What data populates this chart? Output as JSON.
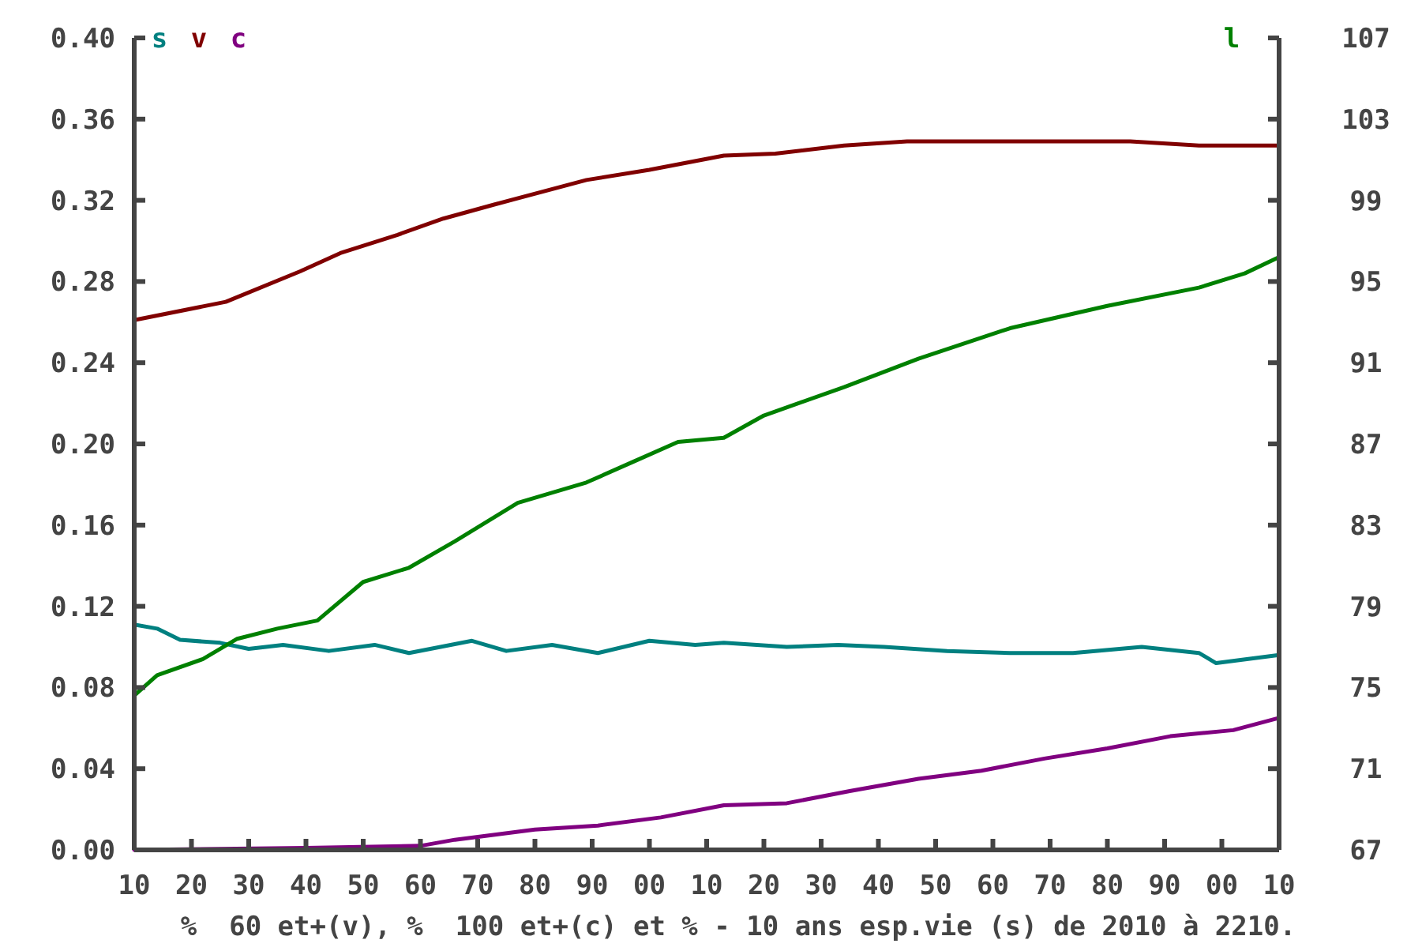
{
  "chart_data": {
    "type": "line",
    "xlabel": "%  60 et+(v), %  100 et+(c) et % - 10 ans esp.vie (s) de 2010 à 2210.",
    "xlim": [
      "2010",
      "2210"
    ],
    "xticks": [
      {
        "value": "2010",
        "label": "10"
      },
      {
        "value": "2020",
        "label": "20"
      },
      {
        "value": "2030",
        "label": "30"
      },
      {
        "value": "2040",
        "label": "40"
      },
      {
        "value": "2050",
        "label": "50"
      },
      {
        "value": "2060",
        "label": "60"
      },
      {
        "value": "2070",
        "label": "70"
      },
      {
        "value": "2080",
        "label": "80"
      },
      {
        "value": "2090",
        "label": "90"
      },
      {
        "value": "2100",
        "label": "00"
      },
      {
        "value": "2110",
        "label": "10"
      },
      {
        "value": "2120",
        "label": "20"
      },
      {
        "value": "2130",
        "label": "30"
      },
      {
        "value": "2140",
        "label": "40"
      },
      {
        "value": "2150",
        "label": "50"
      },
      {
        "value": "2160",
        "label": "60"
      },
      {
        "value": "2170",
        "label": "70"
      },
      {
        "value": "2180",
        "label": "80"
      },
      {
        "value": "2190",
        "label": "90"
      },
      {
        "value": "2200",
        "label": "00"
      },
      {
        "value": "2210",
        "label": "10"
      }
    ],
    "ylim": [
      0,
      0.4
    ],
    "yticks": [
      {
        "value": 0,
        "label": "0.00"
      },
      {
        "value": 0.04,
        "label": "0.04"
      },
      {
        "value": 0.08,
        "label": "0.08"
      },
      {
        "value": 0.12,
        "label": "0.12"
      },
      {
        "value": 0.16,
        "label": "0.16"
      },
      {
        "value": 0.2,
        "label": "0.20"
      },
      {
        "value": 0.24,
        "label": "0.24"
      },
      {
        "value": 0.28,
        "label": "0.28"
      },
      {
        "value": 0.32,
        "label": "0.32"
      },
      {
        "value": 0.36,
        "label": "0.36"
      },
      {
        "value": 0.4,
        "label": "0.40"
      }
    ],
    "y2lim": [
      67,
      107
    ],
    "y2ticks": [
      67,
      71,
      75,
      79,
      83,
      87,
      91,
      95,
      99,
      103,
      107
    ],
    "legend": "top",
    "grid": false,
    "marker": "none",
    "line_style": "solid",
    "series": [
      {
        "name": "s",
        "color": "#008080",
        "x": [
          "2010",
          "2014",
          "2018",
          "2025",
          "2030",
          "2036",
          "2044",
          "2052",
          "2058",
          "2069",
          "2075",
          "2083",
          "2091",
          "2100",
          "2108",
          "2113",
          "2124",
          "2133",
          "2141",
          "2152",
          "2163",
          "2174",
          "2186",
          "2196",
          "2199",
          "2210"
        ],
        "values": [
          0.111,
          0.109,
          0.1035,
          0.102,
          0.099,
          0.101,
          0.098,
          0.101,
          0.097,
          0.103,
          0.098,
          0.101,
          0.097,
          0.103,
          0.101,
          0.102,
          0.1,
          0.101,
          0.1,
          0.098,
          0.097,
          0.097,
          0.1,
          0.097,
          0.092,
          0.096
        ]
      },
      {
        "name": "v",
        "color": "#800000",
        "x": [
          "2010",
          "2026",
          "2039",
          "2046",
          "2056",
          "2064",
          "2073",
          "2089",
          "2100",
          "2113",
          "2122",
          "2134",
          "2145",
          "2166",
          "2184",
          "2196",
          "2210"
        ],
        "values": [
          0.261,
          0.27,
          0.285,
          0.294,
          0.303,
          0.311,
          0.318,
          0.33,
          0.335,
          0.342,
          0.343,
          0.347,
          0.349,
          0.349,
          0.349,
          0.347,
          0.347
        ]
      },
      {
        "name": "c",
        "color": "#800080",
        "x": [
          "2010",
          "2040",
          "2060",
          "2066",
          "2080",
          "2091",
          "2102",
          "2113",
          "2124",
          "2135",
          "2147",
          "2158",
          "2169",
          "2180",
          "2191",
          "2202",
          "2210"
        ],
        "values": [
          0.0,
          0.001,
          0.002,
          0.005,
          0.01,
          0.012,
          0.016,
          0.022,
          0.023,
          0.029,
          0.035,
          0.039,
          0.045,
          0.05,
          0.056,
          0.059,
          0.065
        ]
      },
      {
        "name": "l",
        "color": "#008000",
        "axis": "y2",
        "x": [
          "2010",
          "2014",
          "2022",
          "2028",
          "2035",
          "2042",
          "2050",
          "2058",
          "2066",
          "2077",
          "2089",
          "2097",
          "2105",
          "2113",
          "2120",
          "2134",
          "2147",
          "2163",
          "2180",
          "2196",
          "2204",
          "2210"
        ],
        "values": [
          74.6,
          75.6,
          76.4,
          77.4,
          77.9,
          78.3,
          80.2,
          80.9,
          82.2,
          84.1,
          85.1,
          86.1,
          87.1,
          87.3,
          88.4,
          89.8,
          91.2,
          92.7,
          93.8,
          94.7,
          95.4,
          96.2
        ]
      }
    ]
  }
}
